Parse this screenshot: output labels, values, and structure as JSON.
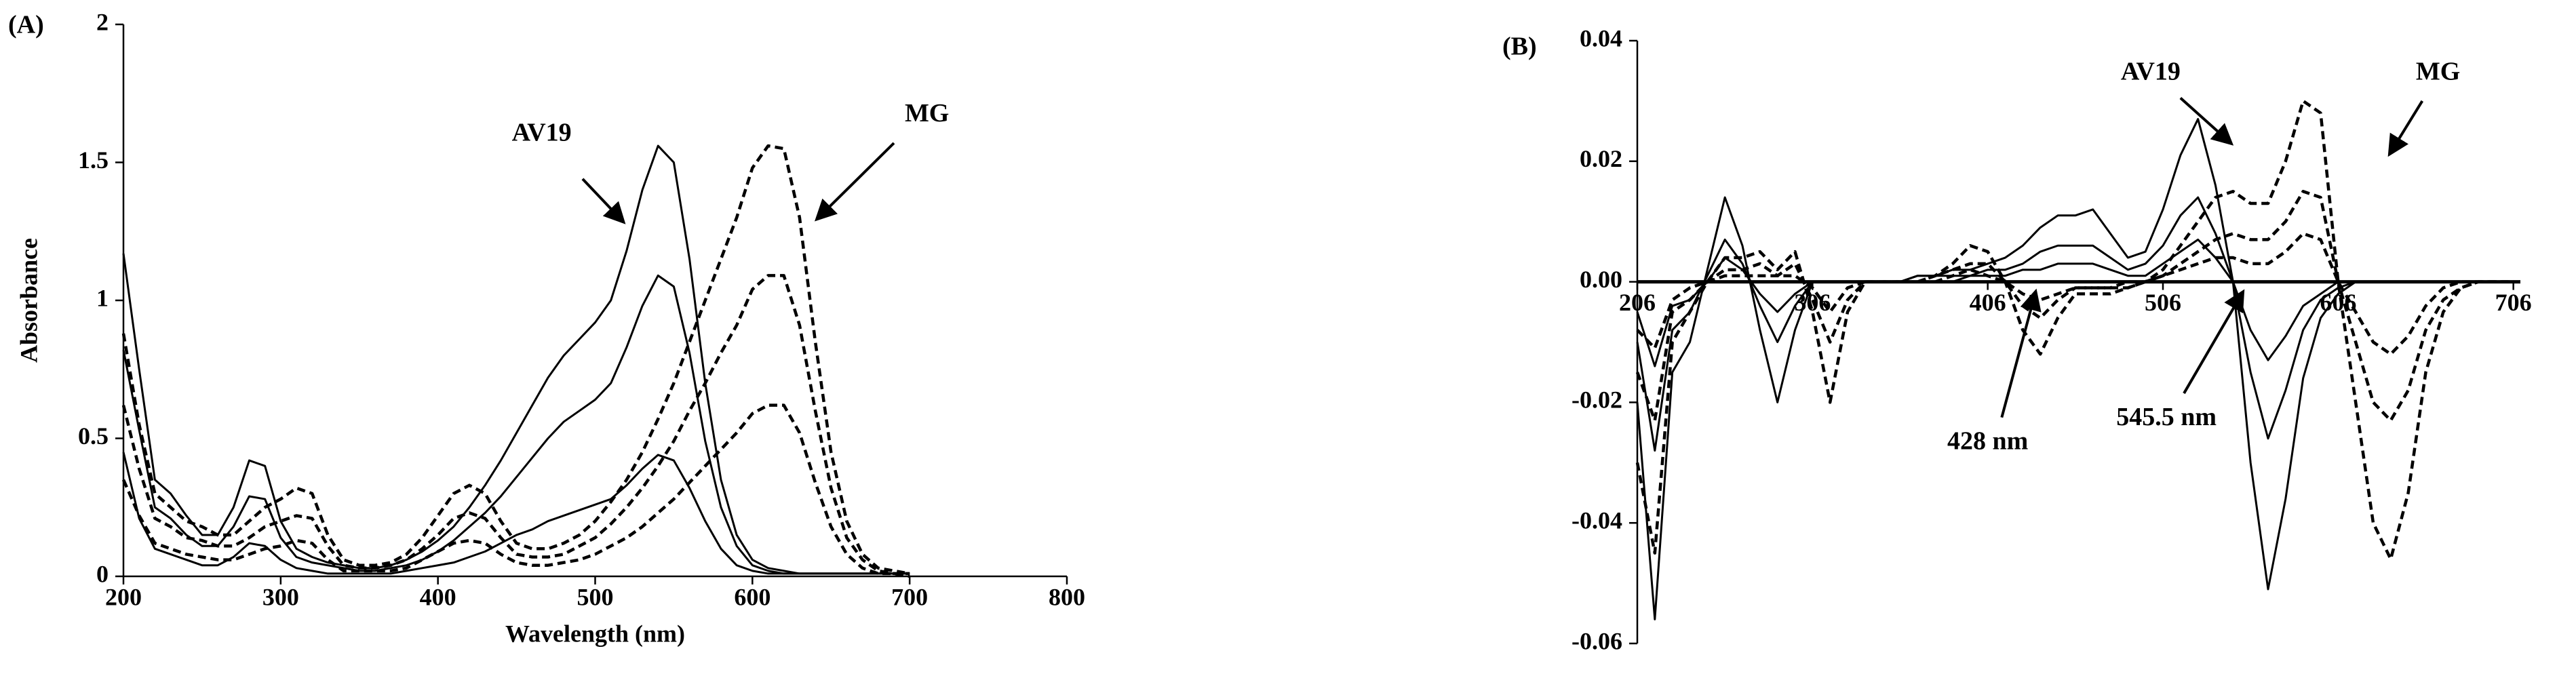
{
  "chart_data": [
    {
      "type": "line",
      "panel_label": "(A)",
      "x_label": "Wavelength (nm)",
      "y_label": "Absorbance",
      "annotations": [
        "AV19",
        "MG"
      ],
      "xlim": [
        200,
        800
      ],
      "xticks": [
        200,
        300,
        400,
        500,
        600,
        700,
        800
      ],
      "ylim": [
        0,
        2
      ],
      "yticks": [
        0,
        0.5,
        1,
        1.5,
        2
      ],
      "x": [
        200,
        210,
        220,
        230,
        240,
        250,
        260,
        270,
        280,
        290,
        300,
        310,
        320,
        330,
        340,
        350,
        360,
        370,
        380,
        390,
        400,
        410,
        420,
        430,
        440,
        450,
        460,
        470,
        480,
        490,
        500,
        510,
        520,
        530,
        540,
        550,
        560,
        570,
        580,
        590,
        600,
        610,
        620,
        630,
        640,
        650,
        660,
        670,
        680,
        690,
        700
      ],
      "series": [
        {
          "color": "#000000",
          "dashed": false,
          "values": [
            1.17,
            0.75,
            0.35,
            0.3,
            0.22,
            0.15,
            0.15,
            0.25,
            0.42,
            0.4,
            0.2,
            0.1,
            0.07,
            0.05,
            0.04,
            0.03,
            0.03,
            0.04,
            0.06,
            0.09,
            0.13,
            0.18,
            0.25,
            0.33,
            0.42,
            0.52,
            0.62,
            0.72,
            0.8,
            0.86,
            0.92,
            1.0,
            1.18,
            1.4,
            1.56,
            1.5,
            1.15,
            0.7,
            0.35,
            0.15,
            0.06,
            0.03,
            0.02,
            0.01,
            0.01,
            0.01,
            0.01,
            0.01,
            0.01,
            0.01,
            0.01
          ]
        },
        {
          "color": "#000000",
          "dashed": false,
          "values": [
            0.82,
            0.53,
            0.25,
            0.21,
            0.15,
            0.11,
            0.11,
            0.18,
            0.29,
            0.28,
            0.14,
            0.07,
            0.05,
            0.04,
            0.03,
            0.02,
            0.02,
            0.03,
            0.04,
            0.06,
            0.09,
            0.13,
            0.18,
            0.23,
            0.29,
            0.36,
            0.43,
            0.5,
            0.56,
            0.6,
            0.64,
            0.7,
            0.83,
            0.98,
            1.09,
            1.05,
            0.81,
            0.49,
            0.25,
            0.11,
            0.04,
            0.02,
            0.01,
            0.01,
            0.01,
            0.01,
            0.01,
            0.01,
            0.01,
            0.01,
            0.01
          ]
        },
        {
          "color": "#000000",
          "dashed": false,
          "values": [
            0.45,
            0.21,
            0.1,
            0.08,
            0.06,
            0.04,
            0.04,
            0.07,
            0.12,
            0.11,
            0.06,
            0.03,
            0.02,
            0.01,
            0.01,
            0.01,
            0.01,
            0.01,
            0.02,
            0.03,
            0.04,
            0.05,
            0.07,
            0.09,
            0.12,
            0.15,
            0.17,
            0.2,
            0.22,
            0.24,
            0.26,
            0.28,
            0.33,
            0.39,
            0.44,
            0.42,
            0.32,
            0.2,
            0.1,
            0.04,
            0.02,
            0.01,
            0.01,
            0.01,
            0.01,
            0.01,
            0.01,
            0.01,
            0.01,
            0.01,
            0.01
          ]
        },
        {
          "color": "#000000",
          "dashed": true,
          "values": [
            0.88,
            0.55,
            0.3,
            0.25,
            0.2,
            0.18,
            0.15,
            0.15,
            0.2,
            0.25,
            0.28,
            0.32,
            0.3,
            0.15,
            0.06,
            0.04,
            0.04,
            0.05,
            0.08,
            0.14,
            0.22,
            0.3,
            0.33,
            0.3,
            0.2,
            0.12,
            0.1,
            0.1,
            0.12,
            0.15,
            0.2,
            0.27,
            0.35,
            0.45,
            0.57,
            0.7,
            0.85,
            1.0,
            1.15,
            1.3,
            1.48,
            1.56,
            1.55,
            1.3,
            0.85,
            0.45,
            0.2,
            0.08,
            0.03,
            0.02,
            0.01
          ]
        },
        {
          "color": "#000000",
          "dashed": true,
          "values": [
            0.62,
            0.39,
            0.21,
            0.18,
            0.14,
            0.13,
            0.11,
            0.11,
            0.14,
            0.18,
            0.2,
            0.22,
            0.21,
            0.11,
            0.04,
            0.03,
            0.03,
            0.04,
            0.06,
            0.1,
            0.15,
            0.21,
            0.23,
            0.21,
            0.14,
            0.08,
            0.07,
            0.07,
            0.08,
            0.11,
            0.14,
            0.19,
            0.25,
            0.32,
            0.4,
            0.49,
            0.6,
            0.7,
            0.81,
            0.91,
            1.04,
            1.09,
            1.09,
            0.91,
            0.6,
            0.32,
            0.14,
            0.06,
            0.02,
            0.01,
            0.01
          ]
        },
        {
          "color": "#000000",
          "dashed": true,
          "values": [
            0.35,
            0.22,
            0.12,
            0.1,
            0.08,
            0.07,
            0.06,
            0.06,
            0.08,
            0.1,
            0.11,
            0.13,
            0.12,
            0.06,
            0.02,
            0.02,
            0.02,
            0.02,
            0.03,
            0.06,
            0.09,
            0.12,
            0.13,
            0.12,
            0.08,
            0.05,
            0.04,
            0.04,
            0.05,
            0.06,
            0.08,
            0.11,
            0.14,
            0.18,
            0.23,
            0.28,
            0.34,
            0.4,
            0.46,
            0.52,
            0.59,
            0.62,
            0.62,
            0.52,
            0.34,
            0.18,
            0.08,
            0.03,
            0.01,
            0.01,
            0
          ]
        }
      ]
    },
    {
      "type": "line",
      "panel_label": "(B)",
      "annotations": [
        "AV19",
        "MG",
        "428 nm",
        "545.5 nm"
      ],
      "xlim": [
        206,
        710
      ],
      "xticks": [
        206,
        306,
        406,
        506,
        606,
        706
      ],
      "ylim": [
        -0.06,
        0.04
      ],
      "yticks": [
        -0.06,
        -0.04,
        -0.02,
        {
          "value": 0,
          "label": "0.00"
        },
        0.02,
        0.04
      ],
      "x": [
        206,
        216,
        226,
        236,
        246,
        256,
        266,
        276,
        286,
        296,
        306,
        316,
        326,
        336,
        346,
        356,
        366,
        376,
        386,
        396,
        406,
        416,
        426,
        436,
        446,
        456,
        466,
        476,
        486,
        496,
        506,
        516,
        526,
        536,
        546,
        556,
        566,
        576,
        586,
        596,
        606,
        616,
        626,
        636,
        646,
        656,
        666,
        676,
        686,
        696,
        706
      ],
      "series": [
        {
          "color": "#000000",
          "dashed": false,
          "values": [
            -0.02,
            -0.056,
            -0.015,
            -0.01,
            0.002,
            0.014,
            0.006,
            -0.008,
            -0.02,
            -0.008,
            0,
            0,
            0,
            0,
            0,
            0,
            0.001,
            0.001,
            0.002,
            0.002,
            0.003,
            0.004,
            0.006,
            0.009,
            0.011,
            0.011,
            0.012,
            0.008,
            0.004,
            0.005,
            0.012,
            0.021,
            0.027,
            0.016,
            0,
            -0.03,
            -0.051,
            -0.036,
            -0.016,
            -0.006,
            -0.002,
            0,
            0,
            0,
            0,
            0,
            0,
            0,
            0,
            0,
            0
          ]
        },
        {
          "color": "#000000",
          "dashed": false,
          "values": [
            -0.01,
            -0.028,
            -0.008,
            -0.005,
            0.001,
            0.007,
            0.003,
            -0.004,
            -0.01,
            -0.004,
            0,
            0,
            0,
            0,
            0,
            0,
            0.001,
            0.001,
            0.001,
            0.001,
            0.002,
            0.002,
            0.003,
            0.005,
            0.006,
            0.006,
            0.006,
            0.004,
            0.002,
            0.003,
            0.006,
            0.011,
            0.014,
            0.008,
            0,
            -0.015,
            -0.026,
            -0.018,
            -0.008,
            -0.003,
            -0.001,
            0,
            0,
            0,
            0,
            0,
            0,
            0,
            0,
            0,
            0
          ]
        },
        {
          "color": "#000000",
          "dashed": false,
          "values": [
            -0.005,
            -0.014,
            -0.004,
            -0.003,
            0,
            0.004,
            0.002,
            -0.002,
            -0.005,
            -0.002,
            0,
            0,
            0,
            0,
            0,
            0,
            0,
            0,
            0,
            0.001,
            0.001,
            0.001,
            0.002,
            0.002,
            0.003,
            0.003,
            0.003,
            0.002,
            0.001,
            0.001,
            0.003,
            0.005,
            0.007,
            0.004,
            0,
            -0.008,
            -0.013,
            -0.009,
            -0.004,
            -0.002,
            0,
            0,
            0,
            0,
            0,
            0,
            0,
            0,
            0,
            0,
            0
          ]
        },
        {
          "color": "#000000",
          "dashed": true,
          "values": [
            -0.03,
            -0.045,
            -0.01,
            -0.005,
            0,
            0.004,
            0.004,
            0.005,
            0.002,
            0.005,
            -0.005,
            -0.02,
            -0.005,
            0,
            0,
            0,
            0,
            0.001,
            0.003,
            0.006,
            0.005,
            0,
            -0.008,
            -0.012,
            -0.006,
            -0.002,
            -0.002,
            -0.002,
            -0.001,
            0,
            0.002,
            0.006,
            0.01,
            0.014,
            0.015,
            0.013,
            0.013,
            0.02,
            0.03,
            0.028,
            0,
            -0.02,
            -0.04,
            -0.046,
            -0.035,
            -0.015,
            -0.005,
            -0.001,
            0,
            0,
            0
          ]
        },
        {
          "color": "#000000",
          "dashed": true,
          "values": [
            -0.015,
            -0.023,
            -0.005,
            -0.003,
            0,
            0.002,
            0.002,
            0.003,
            0.001,
            0.003,
            -0.003,
            -0.01,
            -0.003,
            0,
            0,
            0,
            0,
            0.001,
            0.002,
            0.003,
            0.003,
            0,
            -0.004,
            -0.006,
            -0.003,
            -0.001,
            -0.001,
            -0.001,
            -0.001,
            0,
            0.001,
            0.003,
            0.005,
            0.007,
            0.008,
            0.007,
            0.007,
            0.01,
            0.015,
            0.014,
            0,
            -0.01,
            -0.02,
            -0.023,
            -0.018,
            -0.008,
            -0.003,
            -0.001,
            0,
            0,
            0
          ]
        },
        {
          "color": "#000000",
          "dashed": true,
          "values": [
            -0.008,
            -0.011,
            -0.003,
            -0.001,
            0,
            0.001,
            0.001,
            0.001,
            0.001,
            0.001,
            -0.001,
            -0.005,
            -0.001,
            0,
            0,
            0,
            0,
            0,
            0.001,
            0.002,
            0.001,
            0,
            -0.002,
            -0.003,
            -0.002,
            -0.001,
            -0.001,
            -0.001,
            0,
            0,
            0.001,
            0.002,
            0.003,
            0.004,
            0.004,
            0.003,
            0.003,
            0.005,
            0.008,
            0.007,
            0,
            -0.005,
            -0.01,
            -0.012,
            -0.009,
            -0.004,
            -0.001,
            0,
            0,
            0,
            0
          ]
        }
      ]
    }
  ]
}
